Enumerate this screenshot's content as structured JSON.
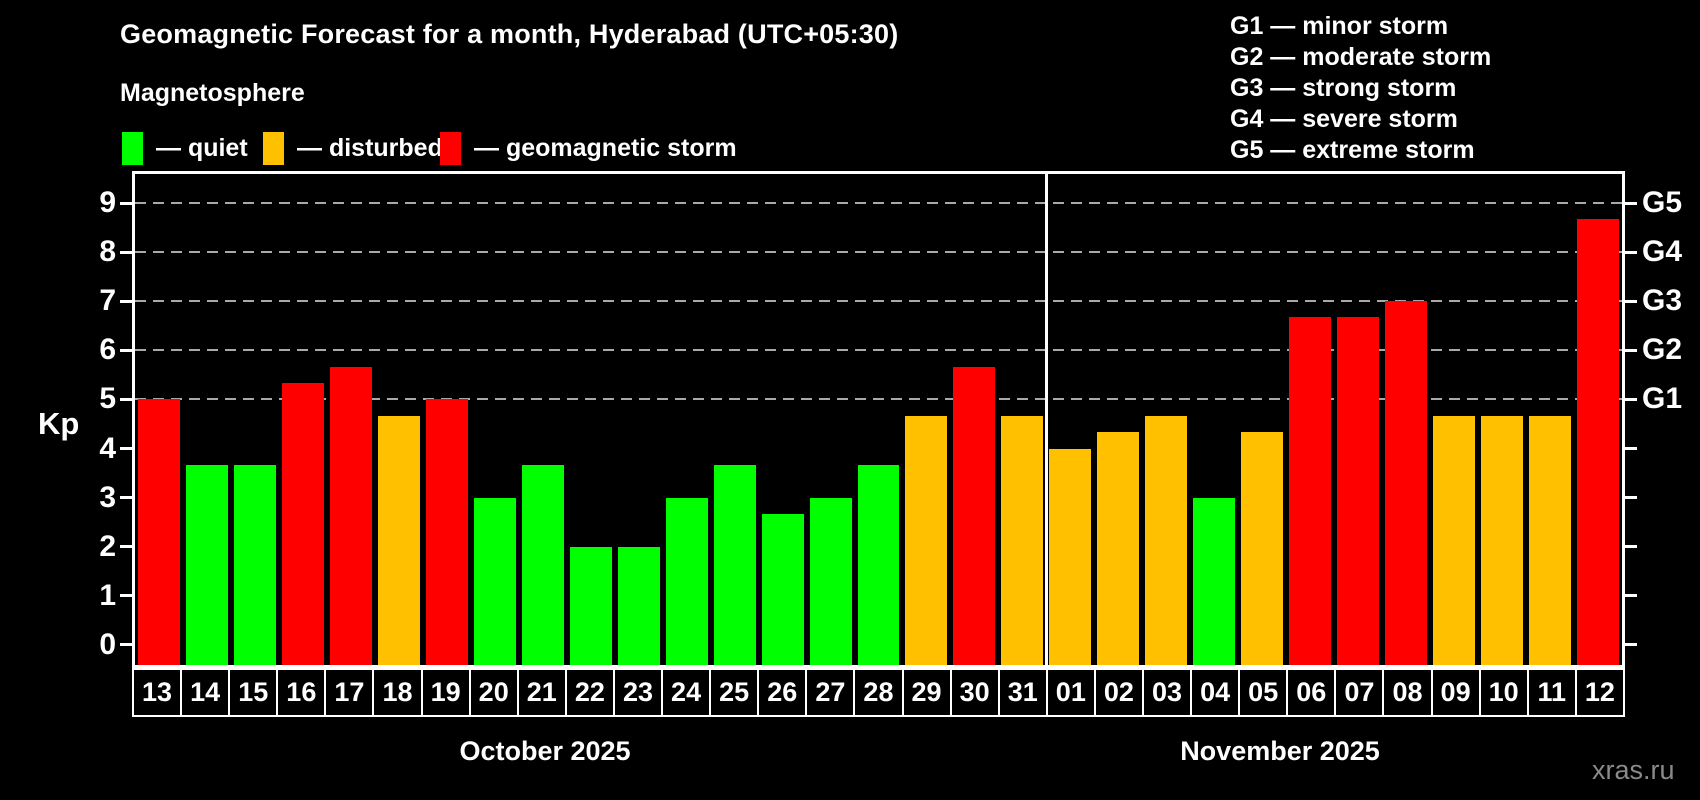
{
  "title": "Geomagnetic Forecast for a month, Hyderabad (UTC+05:30)",
  "subtitle": "Magnetosphere",
  "legend": {
    "quiet": {
      "label": "— quiet",
      "color": "#00ff00"
    },
    "disturbed": {
      "label": "— disturbed",
      "color": "#ffc000"
    },
    "storm": {
      "label": "— geomagnetic storm",
      "color": "#ff0000"
    }
  },
  "g_scale": [
    "G1 — minor storm",
    "G2 — moderate storm",
    "G3 — strong storm",
    "G4 — severe storm",
    "G5 — extreme storm"
  ],
  "watermark": "xras.ru",
  "chart_data": {
    "type": "bar",
    "ylabel": "Kp",
    "ylim": [
      0,
      9
    ],
    "yticks": [
      0,
      1,
      2,
      3,
      4,
      5,
      6,
      7,
      8,
      9
    ],
    "gridlines_at": [
      5,
      6,
      7,
      8,
      9
    ],
    "grid": "dashed horizontal at storm levels only",
    "right_labels": [
      {
        "kp": 5,
        "label": "G1"
      },
      {
        "kp": 6,
        "label": "G2"
      },
      {
        "kp": 7,
        "label": "G3"
      },
      {
        "kp": 8,
        "label": "G4"
      },
      {
        "kp": 9,
        "label": "G5"
      }
    ],
    "status_colors": {
      "quiet": "#00ff00",
      "disturbed": "#ffc000",
      "storm": "#ff0000"
    },
    "months": [
      {
        "label": "October 2025",
        "days": 19
      },
      {
        "label": "November 2025",
        "days": 12
      }
    ],
    "bars": [
      {
        "day": "13",
        "month": "October 2025",
        "kp": 5.0,
        "status": "storm"
      },
      {
        "day": "14",
        "month": "October 2025",
        "kp": 3.67,
        "status": "quiet"
      },
      {
        "day": "15",
        "month": "October 2025",
        "kp": 3.67,
        "status": "quiet"
      },
      {
        "day": "16",
        "month": "October 2025",
        "kp": 5.33,
        "status": "storm"
      },
      {
        "day": "17",
        "month": "October 2025",
        "kp": 5.67,
        "status": "storm"
      },
      {
        "day": "18",
        "month": "October 2025",
        "kp": 4.67,
        "status": "disturbed"
      },
      {
        "day": "19",
        "month": "October 2025",
        "kp": 5.0,
        "status": "storm"
      },
      {
        "day": "20",
        "month": "October 2025",
        "kp": 3.0,
        "status": "quiet"
      },
      {
        "day": "21",
        "month": "October 2025",
        "kp": 3.67,
        "status": "quiet"
      },
      {
        "day": "22",
        "month": "October 2025",
        "kp": 2.0,
        "status": "quiet"
      },
      {
        "day": "23",
        "month": "October 2025",
        "kp": 2.0,
        "status": "quiet"
      },
      {
        "day": "24",
        "month": "October 2025",
        "kp": 3.0,
        "status": "quiet"
      },
      {
        "day": "25",
        "month": "October 2025",
        "kp": 3.67,
        "status": "quiet"
      },
      {
        "day": "26",
        "month": "October 2025",
        "kp": 2.67,
        "status": "quiet"
      },
      {
        "day": "27",
        "month": "October 2025",
        "kp": 3.0,
        "status": "quiet"
      },
      {
        "day": "28",
        "month": "October 2025",
        "kp": 3.67,
        "status": "quiet"
      },
      {
        "day": "29",
        "month": "October 2025",
        "kp": 4.67,
        "status": "disturbed"
      },
      {
        "day": "30",
        "month": "October 2025",
        "kp": 5.67,
        "status": "storm"
      },
      {
        "day": "31",
        "month": "October 2025",
        "kp": 4.67,
        "status": "disturbed"
      },
      {
        "day": "01",
        "month": "November 2025",
        "kp": 4.0,
        "status": "disturbed"
      },
      {
        "day": "02",
        "month": "November 2025",
        "kp": 4.33,
        "status": "disturbed"
      },
      {
        "day": "03",
        "month": "November 2025",
        "kp": 4.67,
        "status": "disturbed"
      },
      {
        "day": "04",
        "month": "November 2025",
        "kp": 3.0,
        "status": "quiet"
      },
      {
        "day": "05",
        "month": "November 2025",
        "kp": 4.33,
        "status": "disturbed"
      },
      {
        "day": "06",
        "month": "November 2025",
        "kp": 6.67,
        "status": "storm"
      },
      {
        "day": "07",
        "month": "November 2025",
        "kp": 6.67,
        "status": "storm"
      },
      {
        "day": "08",
        "month": "November 2025",
        "kp": 7.0,
        "status": "storm"
      },
      {
        "day": "09",
        "month": "November 2025",
        "kp": 4.67,
        "status": "disturbed"
      },
      {
        "day": "10",
        "month": "November 2025",
        "kp": 4.67,
        "status": "disturbed"
      },
      {
        "day": "11",
        "month": "November 2025",
        "kp": 4.67,
        "status": "disturbed"
      },
      {
        "day": "12",
        "month": "November 2025",
        "kp": 8.67,
        "status": "storm"
      }
    ]
  }
}
